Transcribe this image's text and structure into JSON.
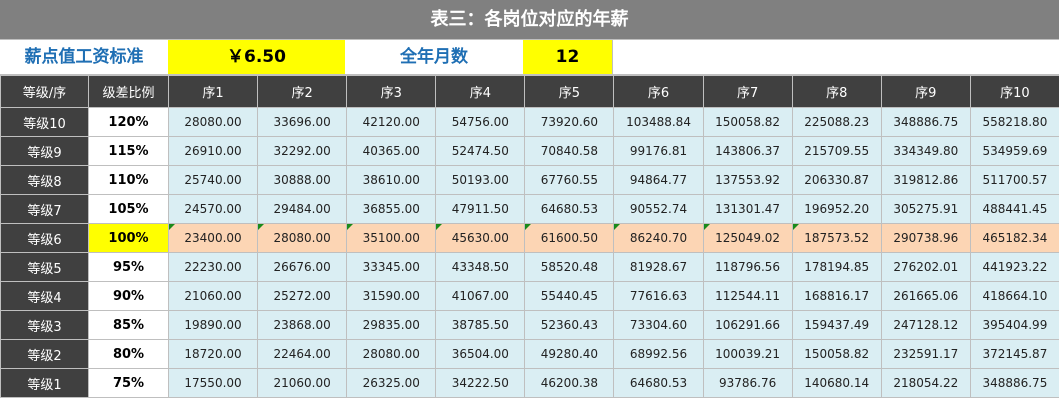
{
  "title": "表三：各岗位对应的年薪",
  "params": {
    "rate_label": "薪点值工资标准",
    "rate_value": "￥6.50",
    "months_label": "全年月数",
    "months_value": "12"
  },
  "table": {
    "header": [
      "等级/序",
      "级差比例",
      "序1",
      "序2",
      "序3",
      "序4",
      "序5",
      "序6",
      "序7",
      "序8",
      "序9",
      "序10"
    ],
    "rows": [
      [
        "等级10",
        "120%",
        "28080.00",
        "33696.00",
        "42120.00",
        "54756.00",
        "73920.60",
        "103488.84",
        "150058.82",
        "225088.23",
        "348886.75",
        "558218.80"
      ],
      [
        "等级9",
        "115%",
        "26910.00",
        "32292.00",
        "40365.00",
        "52474.50",
        "70840.58",
        "99176.81",
        "143806.37",
        "215709.55",
        "334349.80",
        "534959.69"
      ],
      [
        "等级8",
        "110%",
        "25740.00",
        "30888.00",
        "38610.00",
        "50193.00",
        "67760.55",
        "94864.77",
        "137553.92",
        "206330.87",
        "319812.86",
        "511700.57"
      ],
      [
        "等级7",
        "105%",
        "24570.00",
        "29484.00",
        "36855.00",
        "47911.50",
        "64680.53",
        "90552.74",
        "131301.47",
        "196952.20",
        "305275.91",
        "488441.45"
      ],
      [
        "等级6",
        "100%",
        "23400.00",
        "28080.00",
        "35100.00",
        "45630.00",
        "61600.50",
        "86240.70",
        "125049.02",
        "187573.52",
        "290738.96",
        "465182.34"
      ],
      [
        "等级5",
        "95%",
        "22230.00",
        "26676.00",
        "33345.00",
        "43348.50",
        "58520.48",
        "81928.67",
        "118796.56",
        "178194.85",
        "276202.01",
        "441923.22"
      ],
      [
        "等级4",
        "90%",
        "21060.00",
        "25272.00",
        "31590.00",
        "41067.00",
        "55440.45",
        "77616.63",
        "112544.11",
        "168816.17",
        "261665.06",
        "418664.10"
      ],
      [
        "等级3",
        "85%",
        "19890.00",
        "23868.00",
        "29835.00",
        "38785.50",
        "52360.43",
        "73304.60",
        "106291.66",
        "159437.49",
        "247128.12",
        "395404.99"
      ],
      [
        "等级2",
        "80%",
        "18720.00",
        "22464.00",
        "28080.00",
        "36504.00",
        "49280.40",
        "68992.56",
        "100039.21",
        "150058.82",
        "232591.17",
        "372145.87"
      ],
      [
        "等级1",
        "75%",
        "17550.00",
        "21060.00",
        "26325.00",
        "34222.50",
        "46200.38",
        "64680.53",
        "93786.76",
        "140680.14",
        "218054.22",
        "348886.75"
      ]
    ]
  }
}
